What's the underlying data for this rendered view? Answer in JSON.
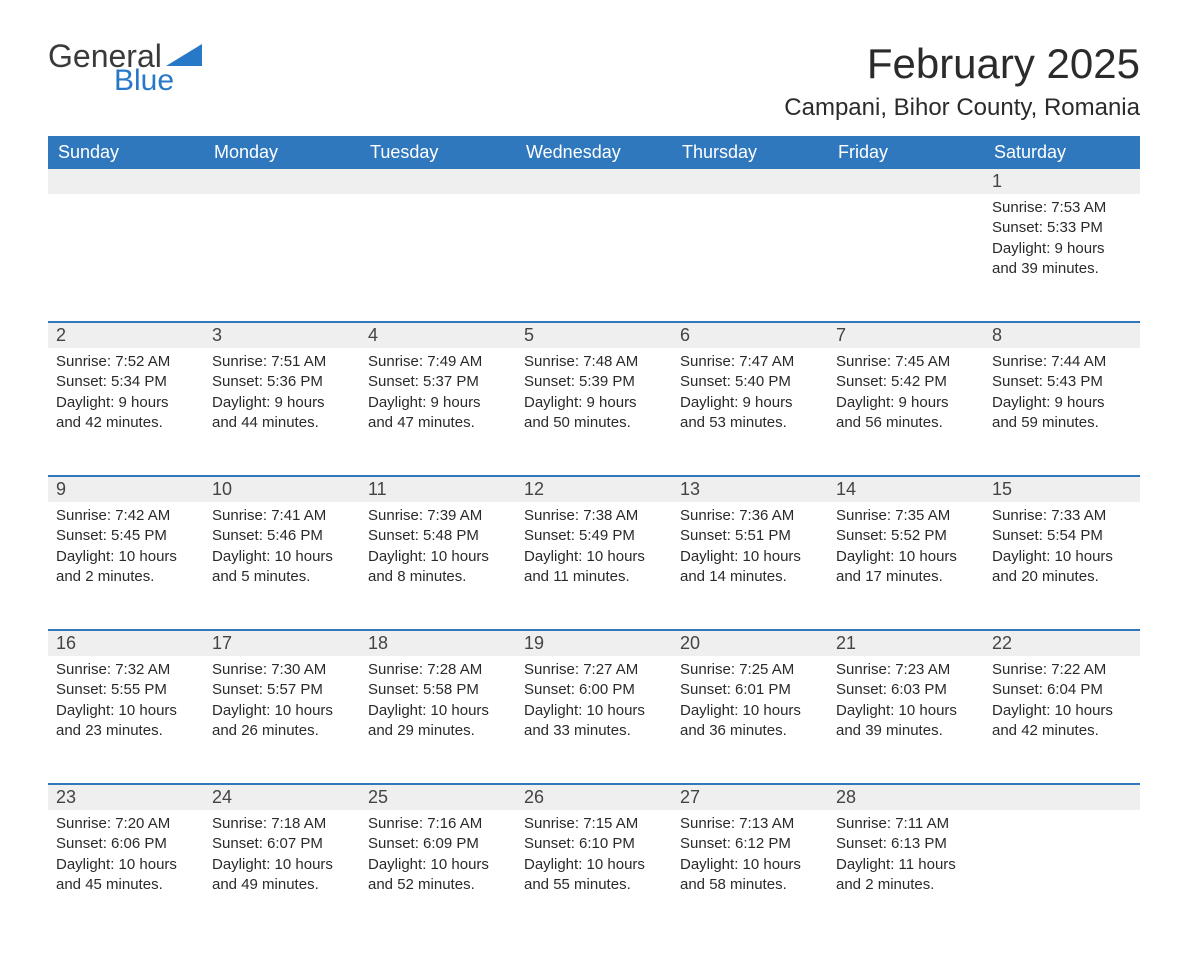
{
  "logo": {
    "word1": "General",
    "word2": "Blue",
    "accent_color": "#2878c8"
  },
  "title": "February 2025",
  "location": "Campani, Bihor County, Romania",
  "colors": {
    "header_bg": "#2f78bd",
    "header_text": "#ffffff",
    "daynum_bg": "#efefef",
    "row_border": "#2f78bd",
    "body_text": "#2a2a2a",
    "page_bg": "#ffffff"
  },
  "weekdays": [
    "Sunday",
    "Monday",
    "Tuesday",
    "Wednesday",
    "Thursday",
    "Friday",
    "Saturday"
  ],
  "start_weekday_index": 6,
  "days": [
    {
      "n": 1,
      "sunrise": "7:53 AM",
      "sunset": "5:33 PM",
      "daylight": "9 hours and 39 minutes."
    },
    {
      "n": 2,
      "sunrise": "7:52 AM",
      "sunset": "5:34 PM",
      "daylight": "9 hours and 42 minutes."
    },
    {
      "n": 3,
      "sunrise": "7:51 AM",
      "sunset": "5:36 PM",
      "daylight": "9 hours and 44 minutes."
    },
    {
      "n": 4,
      "sunrise": "7:49 AM",
      "sunset": "5:37 PM",
      "daylight": "9 hours and 47 minutes."
    },
    {
      "n": 5,
      "sunrise": "7:48 AM",
      "sunset": "5:39 PM",
      "daylight": "9 hours and 50 minutes."
    },
    {
      "n": 6,
      "sunrise": "7:47 AM",
      "sunset": "5:40 PM",
      "daylight": "9 hours and 53 minutes."
    },
    {
      "n": 7,
      "sunrise": "7:45 AM",
      "sunset": "5:42 PM",
      "daylight": "9 hours and 56 minutes."
    },
    {
      "n": 8,
      "sunrise": "7:44 AM",
      "sunset": "5:43 PM",
      "daylight": "9 hours and 59 minutes."
    },
    {
      "n": 9,
      "sunrise": "7:42 AM",
      "sunset": "5:45 PM",
      "daylight": "10 hours and 2 minutes."
    },
    {
      "n": 10,
      "sunrise": "7:41 AM",
      "sunset": "5:46 PM",
      "daylight": "10 hours and 5 minutes."
    },
    {
      "n": 11,
      "sunrise": "7:39 AM",
      "sunset": "5:48 PM",
      "daylight": "10 hours and 8 minutes."
    },
    {
      "n": 12,
      "sunrise": "7:38 AM",
      "sunset": "5:49 PM",
      "daylight": "10 hours and 11 minutes."
    },
    {
      "n": 13,
      "sunrise": "7:36 AM",
      "sunset": "5:51 PM",
      "daylight": "10 hours and 14 minutes."
    },
    {
      "n": 14,
      "sunrise": "7:35 AM",
      "sunset": "5:52 PM",
      "daylight": "10 hours and 17 minutes."
    },
    {
      "n": 15,
      "sunrise": "7:33 AM",
      "sunset": "5:54 PM",
      "daylight": "10 hours and 20 minutes."
    },
    {
      "n": 16,
      "sunrise": "7:32 AM",
      "sunset": "5:55 PM",
      "daylight": "10 hours and 23 minutes."
    },
    {
      "n": 17,
      "sunrise": "7:30 AM",
      "sunset": "5:57 PM",
      "daylight": "10 hours and 26 minutes."
    },
    {
      "n": 18,
      "sunrise": "7:28 AM",
      "sunset": "5:58 PM",
      "daylight": "10 hours and 29 minutes."
    },
    {
      "n": 19,
      "sunrise": "7:27 AM",
      "sunset": "6:00 PM",
      "daylight": "10 hours and 33 minutes."
    },
    {
      "n": 20,
      "sunrise": "7:25 AM",
      "sunset": "6:01 PM",
      "daylight": "10 hours and 36 minutes."
    },
    {
      "n": 21,
      "sunrise": "7:23 AM",
      "sunset": "6:03 PM",
      "daylight": "10 hours and 39 minutes."
    },
    {
      "n": 22,
      "sunrise": "7:22 AM",
      "sunset": "6:04 PM",
      "daylight": "10 hours and 42 minutes."
    },
    {
      "n": 23,
      "sunrise": "7:20 AM",
      "sunset": "6:06 PM",
      "daylight": "10 hours and 45 minutes."
    },
    {
      "n": 24,
      "sunrise": "7:18 AM",
      "sunset": "6:07 PM",
      "daylight": "10 hours and 49 minutes."
    },
    {
      "n": 25,
      "sunrise": "7:16 AM",
      "sunset": "6:09 PM",
      "daylight": "10 hours and 52 minutes."
    },
    {
      "n": 26,
      "sunrise": "7:15 AM",
      "sunset": "6:10 PM",
      "daylight": "10 hours and 55 minutes."
    },
    {
      "n": 27,
      "sunrise": "7:13 AM",
      "sunset": "6:12 PM",
      "daylight": "10 hours and 58 minutes."
    },
    {
      "n": 28,
      "sunrise": "7:11 AM",
      "sunset": "6:13 PM",
      "daylight": "11 hours and 2 minutes."
    }
  ],
  "labels": {
    "sunrise": "Sunrise:",
    "sunset": "Sunset:",
    "daylight": "Daylight:"
  }
}
